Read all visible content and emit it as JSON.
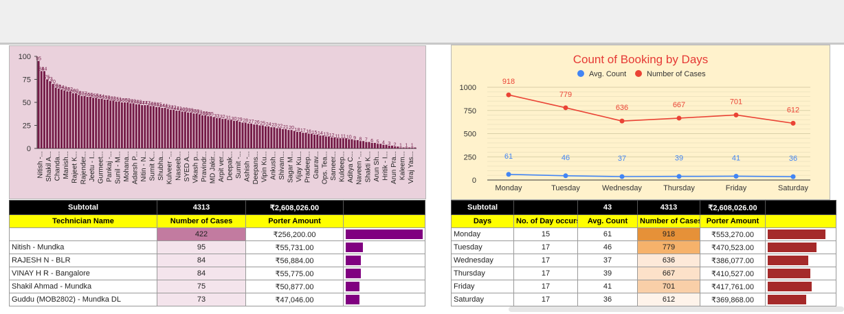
{
  "colors": {
    "left_bar": "#800080",
    "tech_bar": "#800080",
    "day_bar": "#a52a2a",
    "blue": "#4285f4",
    "red": "#ea4335"
  },
  "chart_data": [
    {
      "type": "bar",
      "title": "",
      "ylim": [
        0,
        100
      ],
      "yticks": [
        0,
        25,
        50,
        75,
        100
      ],
      "visible_category_labels": [
        "Nitish -...",
        "Shakil A...",
        "Chanda...",
        "Manish...",
        "Rajeet K...",
        "Rajender...",
        "Jeetu - I...",
        "Gurmeet...",
        "Pankaj -...",
        "Sunil - M...",
        "Mohana...",
        "Adarsh P...",
        "Nitin - N...",
        "Sumit K...",
        "Shubha...",
        "Kulveer -...",
        "Naseeb...",
        "SYED A...",
        "Vikash p...",
        "Pravindr...",
        "MD Jakir...",
        "Arpit ver...",
        "Deepak...",
        "Sumit -...",
        "Ashish -...",
        "Deepans...",
        "Vipin Ku...",
        "Ankush...",
        "Shivam...",
        "Sagar M...",
        "Vijay Ku...",
        "Pradeep...",
        "Gaurav...",
        "Ops. Tea...",
        "Sameer...",
        "Kuldeep...",
        "Aditya C...",
        "Naveen -...",
        "Shakti K...",
        "Arun Sh...",
        "Hritik - I...",
        "Arun Pra...",
        "Kaleem...",
        "Viraj Yas..."
      ],
      "values": [
        95,
        84,
        84,
        75,
        73,
        70,
        66,
        65,
        64,
        63,
        62,
        62,
        60,
        60,
        58,
        57,
        57,
        56,
        56,
        55,
        55,
        54,
        54,
        53,
        53,
        52,
        52,
        51,
        51,
        50,
        50,
        50,
        49,
        49,
        48,
        48,
        47,
        47,
        47,
        46,
        46,
        45,
        45,
        44,
        44,
        43,
        42,
        42,
        41,
        41,
        40,
        40,
        39,
        39,
        38,
        38,
        37,
        36,
        36,
        35,
        35,
        34,
        33,
        33,
        32,
        32,
        31,
        31,
        30,
        30,
        29,
        28,
        28,
        27,
        27,
        26,
        26,
        25,
        25,
        24,
        24,
        23,
        23,
        22,
        22,
        21,
        21,
        20,
        20,
        19,
        18,
        18,
        17,
        17,
        16,
        16,
        15,
        15,
        14,
        14,
        13,
        13,
        12,
        12,
        11,
        11,
        11,
        11,
        10,
        10,
        9,
        9,
        8,
        8,
        7,
        7,
        6,
        6,
        5,
        5,
        4,
        4,
        3,
        3,
        2,
        2,
        1,
        1,
        1,
        1,
        1,
        1
      ]
    },
    {
      "type": "line",
      "title": "Count of Booking by Days",
      "categories": [
        "Monday",
        "Tuesday",
        "Wednesday",
        "Thursday",
        "Friday",
        "Saturday"
      ],
      "ylim": [
        0,
        1000
      ],
      "yticks": [
        0,
        250,
        500,
        750,
        1000
      ],
      "legend": "top",
      "series": [
        {
          "name": "Avg. Count",
          "values": [
            61,
            46,
            37,
            39,
            41,
            36
          ]
        },
        {
          "name": "Number of Cases",
          "values": [
            918,
            779,
            636,
            667,
            701,
            612
          ]
        }
      ]
    }
  ],
  "tech_table": {
    "subtotal": {
      "label": "Subtotal",
      "cases": "4313",
      "amount": "₹2,608,026.00"
    },
    "headers": [
      "Technician Name",
      "Number of Cases",
      "Porter Amount",
      ""
    ],
    "rows": [
      {
        "name": "",
        "cases": "422",
        "amount": "₹256,200.00",
        "bar": 1.0
      },
      {
        "name": "Nitish - Mundka",
        "cases": "95",
        "amount": "₹55,731.00",
        "bar": 0.225
      },
      {
        "name": "RAJESH N - BLR",
        "cases": "84",
        "amount": "₹56,884.00",
        "bar": 0.2
      },
      {
        "name": "VINAY H R - Bangalore",
        "cases": "84",
        "amount": "₹55,775.00",
        "bar": 0.2
      },
      {
        "name": "Shakil Ahmad - Mundka",
        "cases": "75",
        "amount": "₹50,877.00",
        "bar": 0.18
      },
      {
        "name": "Guddu (MOB2802) - Mundka DL",
        "cases": "73",
        "amount": "₹47,046.00",
        "bar": 0.175
      }
    ]
  },
  "day_table": {
    "subtotal": {
      "label": "Subtotal",
      "days": "",
      "avg": "43",
      "cases": "4313",
      "amount": "₹2,608,026.00"
    },
    "headers": [
      "Days",
      "No. of Day occurs",
      "Avg. Count",
      "Number of Cases",
      "Porter Amount",
      ""
    ],
    "rows": [
      {
        "day": "Monday",
        "occurs": "15",
        "avg": "61",
        "cases": "918",
        "amount": "₹553,270.00",
        "bar": 1.0,
        "heat": "#e69138"
      },
      {
        "day": "Tuesday",
        "occurs": "17",
        "avg": "46",
        "cases": "779",
        "amount": "₹470,523.00",
        "bar": 0.85,
        "heat": "#f6b26b"
      },
      {
        "day": "Wednesday",
        "occurs": "17",
        "avg": "37",
        "cases": "636",
        "amount": "₹386,077.00",
        "bar": 0.7,
        "heat": "#fde9d9"
      },
      {
        "day": "Thursday",
        "occurs": "17",
        "avg": "39",
        "cases": "667",
        "amount": "₹410,527.00",
        "bar": 0.74,
        "heat": "#fce1c9"
      },
      {
        "day": "Friday",
        "occurs": "17",
        "avg": "41",
        "cases": "701",
        "amount": "₹417,761.00",
        "bar": 0.76,
        "heat": "#f9cfa8"
      },
      {
        "day": "Saturday",
        "occurs": "17",
        "avg": "36",
        "cases": "612",
        "amount": "₹369,868.00",
        "bar": 0.67,
        "heat": "#fef3ea"
      }
    ]
  }
}
